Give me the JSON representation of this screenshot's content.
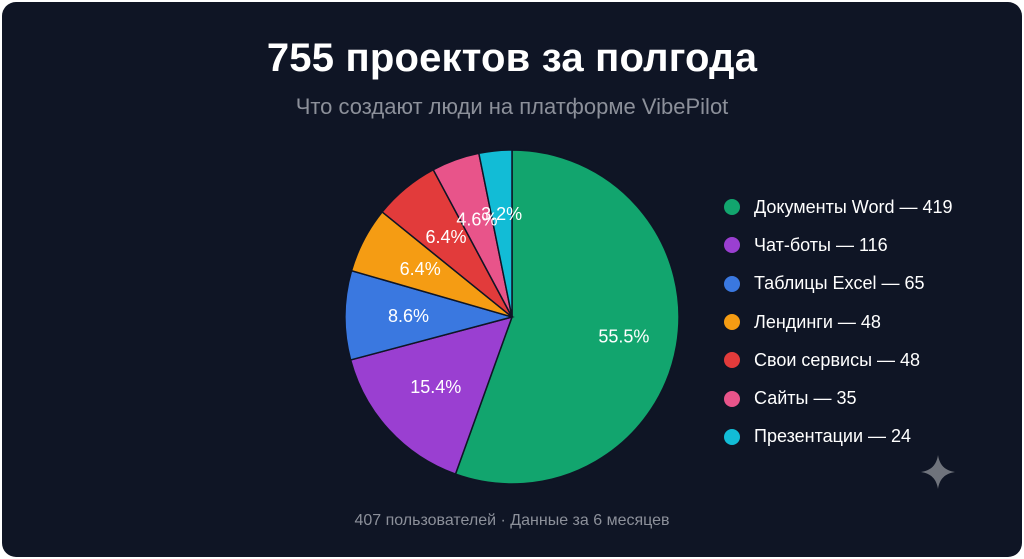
{
  "header": {
    "title": "755 проектов за полгода",
    "subtitle": "Что создают люди на платформе VibePilot"
  },
  "footer": {
    "text": "407 пользователей · Данные за 6 месяцев"
  },
  "chart_data": {
    "type": "pie",
    "title": "755 проектов за полгода",
    "subtitle": "Что создают люди на платформе VibePilot",
    "total": 755,
    "legend_position": "right",
    "slices": [
      {
        "name": "Документы Word",
        "value": 419,
        "pct_label": "55.5%",
        "color": "#12a56e",
        "legend": "Документы Word — 419"
      },
      {
        "name": "Чат-боты",
        "value": 116,
        "pct_label": "15.4%",
        "color": "#9a3fd1",
        "legend": "Чат-боты — 116"
      },
      {
        "name": "Таблицы Excel",
        "value": 65,
        "pct_label": "8.6%",
        "color": "#3a78e0",
        "legend": "Таблицы Excel — 65"
      },
      {
        "name": "Лендинги",
        "value": 48,
        "pct_label": "6.4%",
        "color": "#f59c13",
        "legend": "Лендинги — 48"
      },
      {
        "name": "Свои сервисы",
        "value": 48,
        "pct_label": "6.4%",
        "color": "#e23b3b",
        "legend": "Свои сервисы — 48"
      },
      {
        "name": "Сайты",
        "value": 35,
        "pct_label": "4.6%",
        "color": "#e8548a",
        "legend": "Сайты — 35"
      },
      {
        "name": "Презентации",
        "value": 24,
        "pct_label": "3.2%",
        "color": "#12bcd6",
        "legend": "Презентации — 24"
      }
    ]
  },
  "decoration": {
    "sparkle_icon": "sparkle-icon"
  }
}
